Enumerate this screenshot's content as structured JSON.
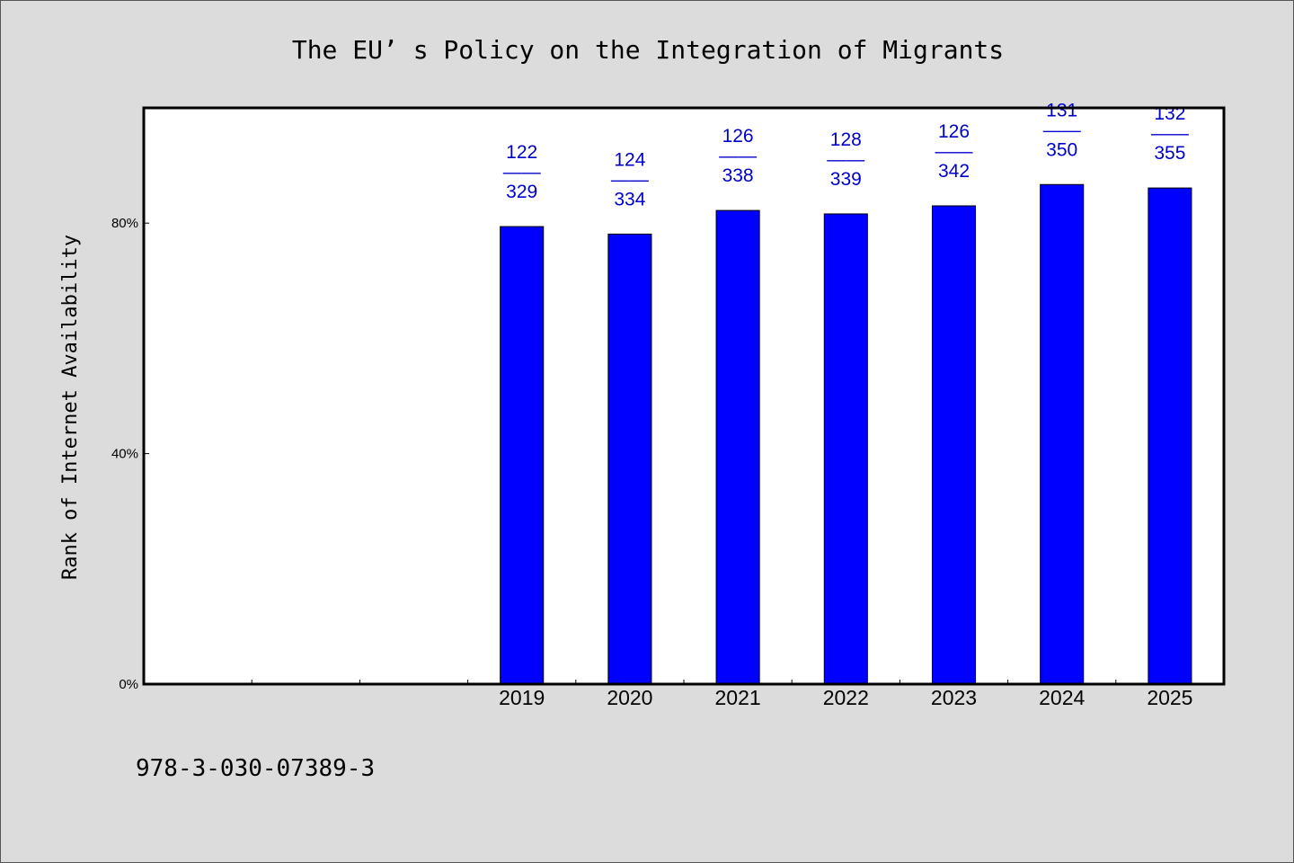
{
  "chart_data": {
    "type": "bar",
    "title": "The EU’ s Policy on the Integration of Migrants",
    "xlabel": "",
    "ylabel": "Rank of Internet Availability",
    "categories": [
      "2019",
      "2020",
      "2021",
      "2022",
      "2023",
      "2024",
      "2025"
    ],
    "x_slot_count": 10,
    "values": [
      79.4,
      78.1,
      82.2,
      81.6,
      83.0,
      86.7,
      86.1
    ],
    "data_labels": [
      {
        "rank": "122",
        "sep": "——",
        "total": "329"
      },
      {
        "rank": "124",
        "sep": "——",
        "total": "334"
      },
      {
        "rank": "126",
        "sep": "——",
        "total": "338"
      },
      {
        "rank": "128",
        "sep": "——",
        "total": "339"
      },
      {
        "rank": "126",
        "sep": "——",
        "total": "342"
      },
      {
        "rank": "131",
        "sep": "——",
        "total": "350"
      },
      {
        "rank": "132",
        "sep": "——",
        "total": "355"
      }
    ],
    "ylim": [
      0,
      100
    ],
    "yticks": [
      0,
      40,
      80
    ],
    "ytick_labels": [
      "0%",
      "40%",
      "80%"
    ],
    "grid": false,
    "legend": "none",
    "bar_color": "#0000ff",
    "label_color": "#0000cc"
  },
  "footer": {
    "isbn": "978-3-030-07389-3"
  }
}
